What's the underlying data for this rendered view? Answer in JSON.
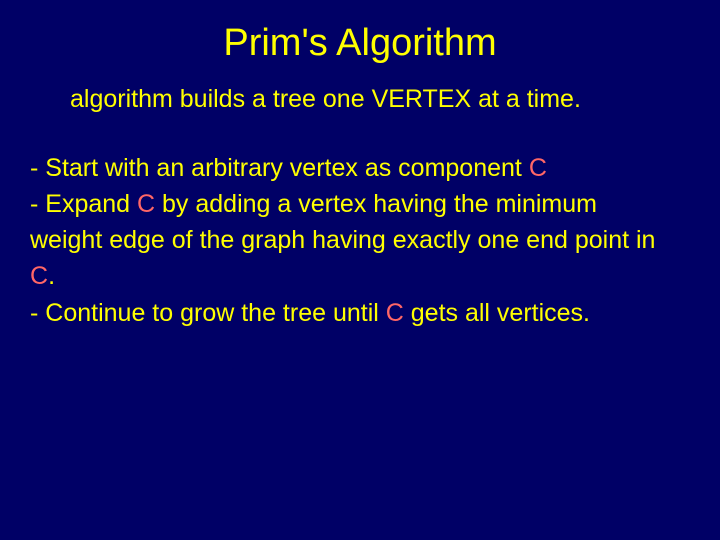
{
  "slide": {
    "background_color": "#000066",
    "title": {
      "text": "Prim's Algorithm",
      "color": "#ffff00",
      "fontsize_pt": 38
    },
    "subtitle": {
      "text": "algorithm builds a tree one VERTEX at a time.",
      "color": "#ffff00",
      "fontsize_pt": 25
    },
    "body": {
      "color": "#ffff00",
      "accent_color": "#ff6666",
      "fontsize_pt": 25,
      "segments": {
        "s1": "- Start with an arbitrary vertex as component ",
        "c1": "C",
        "br1": "",
        "s2": "- Expand ",
        "c2": "C",
        "s3": " by adding a vertex having the minimum weight edge of the graph having exactly one end point in ",
        "c3": "C",
        "s4": ".",
        "br2": "",
        "s5": "- Continue to grow the tree until ",
        "c4": "C",
        "s6": " gets all vertices."
      }
    }
  }
}
